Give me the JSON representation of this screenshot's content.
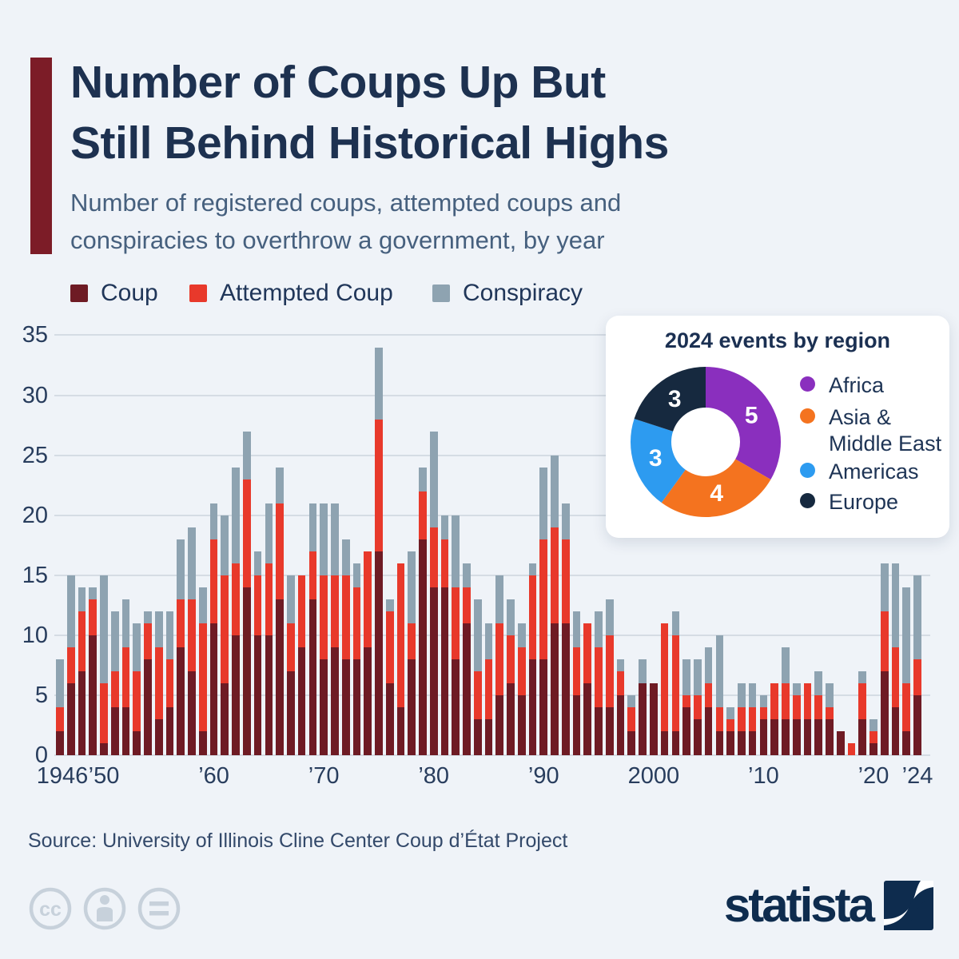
{
  "header": {
    "title_lines": [
      "Number of Coups Up But",
      "Still Behind Historical Highs"
    ],
    "subtitle_lines": [
      "Number of registered coups, attempted coups and",
      "conspiracies to overthrow a government, by year"
    ],
    "accent_color": "#7c1c27"
  },
  "legend": {
    "items": [
      {
        "label": "Coup",
        "color": "#6e1b24"
      },
      {
        "label": "Attempted Coup",
        "color": "#e8392b"
      },
      {
        "label": "Conspiracy",
        "color": "#8ea3b1"
      }
    ]
  },
  "chart_data": {
    "type": "bar",
    "stacked": true,
    "title": "Number of registered coups, attempted coups and conspiracies to overthrow a government, by year",
    "ylim": [
      0,
      35
    ],
    "y_ticks": [
      0,
      5,
      10,
      15,
      20,
      25,
      30,
      35
    ],
    "grid": "horizontal",
    "legend_position": "top-left",
    "years": [
      1946,
      1947,
      1948,
      1949,
      1950,
      1951,
      1952,
      1953,
      1954,
      1955,
      1956,
      1957,
      1958,
      1959,
      1960,
      1961,
      1962,
      1963,
      1964,
      1965,
      1966,
      1967,
      1968,
      1969,
      1970,
      1971,
      1972,
      1973,
      1974,
      1975,
      1976,
      1977,
      1978,
      1979,
      1980,
      1981,
      1982,
      1983,
      1984,
      1985,
      1986,
      1987,
      1988,
      1989,
      1990,
      1991,
      1992,
      1993,
      1994,
      1995,
      1996,
      1997,
      1998,
      1999,
      2000,
      2001,
      2002,
      2003,
      2004,
      2005,
      2006,
      2007,
      2008,
      2009,
      2010,
      2011,
      2012,
      2013,
      2014,
      2015,
      2016,
      2017,
      2018,
      2019,
      2020,
      2021,
      2022,
      2023,
      2024
    ],
    "series": [
      {
        "name": "Coup",
        "color": "#6e1b24",
        "values": [
          2,
          6,
          7,
          10,
          1,
          4,
          4,
          2,
          8,
          3,
          4,
          9,
          7,
          2,
          11,
          6,
          10,
          14,
          10,
          10,
          13,
          7,
          9,
          13,
          8,
          9,
          8,
          8,
          9,
          17,
          6,
          4,
          8,
          18,
          14,
          14,
          8,
          11,
          3,
          3,
          5,
          6,
          5,
          8,
          8,
          11,
          11,
          5,
          6,
          4,
          4,
          5,
          2,
          6,
          6,
          2,
          2,
          4,
          3,
          4,
          2,
          2,
          2,
          2,
          3,
          3,
          3,
          3,
          3,
          3,
          3,
          2,
          0,
          3,
          1,
          7,
          4,
          2,
          5
        ]
      },
      {
        "name": "Attempted Coup",
        "color": "#e8392b",
        "values": [
          2,
          3,
          5,
          3,
          5,
          3,
          5,
          5,
          3,
          6,
          4,
          4,
          6,
          9,
          7,
          9,
          6,
          9,
          5,
          6,
          8,
          4,
          6,
          4,
          7,
          6,
          7,
          6,
          8,
          11,
          6,
          12,
          3,
          4,
          5,
          4,
          6,
          3,
          4,
          5,
          6,
          4,
          4,
          7,
          10,
          8,
          7,
          4,
          5,
          5,
          6,
          2,
          2,
          0,
          0,
          9,
          8,
          1,
          2,
          2,
          2,
          1,
          2,
          2,
          1,
          3,
          3,
          2,
          3,
          2,
          1,
          0,
          1,
          3,
          1,
          5,
          5,
          4,
          3
        ]
      },
      {
        "name": "Conspiracy",
        "color": "#8ea3b1",
        "values": [
          4,
          6,
          2,
          1,
          9,
          5,
          4,
          4,
          1,
          3,
          4,
          5,
          6,
          3,
          3,
          5,
          8,
          4,
          2,
          5,
          3,
          4,
          0,
          4,
          6,
          6,
          3,
          2,
          0,
          6,
          1,
          0,
          6,
          2,
          8,
          2,
          6,
          2,
          6,
          3,
          4,
          3,
          2,
          1,
          6,
          6,
          3,
          3,
          0,
          3,
          3,
          1,
          1,
          2,
          0,
          0,
          2,
          3,
          3,
          3,
          6,
          1,
          2,
          2,
          1,
          0,
          3,
          1,
          0,
          2,
          2,
          0,
          0,
          1,
          1,
          4,
          7,
          8,
          7
        ]
      }
    ],
    "x_tick_labels": [
      {
        "label": "1946",
        "year": 1946
      },
      {
        "label": "’50",
        "year": 1950
      },
      {
        "label": "’60",
        "year": 1960
      },
      {
        "label": "’70",
        "year": 1970
      },
      {
        "label": "’80",
        "year": 1980
      },
      {
        "label": "’90",
        "year": 1990
      },
      {
        "label": "2000",
        "year": 2000
      },
      {
        "label": "’10",
        "year": 2010
      },
      {
        "label": "’20",
        "year": 2020
      },
      {
        "label": "’24",
        "year": 2024
      }
    ]
  },
  "inset": {
    "title": "2024 events by region",
    "type": "donut",
    "segments": [
      {
        "label": "Africa",
        "legend_lines": [
          "Africa"
        ],
        "value": 5,
        "color": "#8a2fbe"
      },
      {
        "label": "Asia & Middle East",
        "legend_lines": [
          "Asia &",
          "Middle East"
        ],
        "value": 4,
        "color": "#f4731f"
      },
      {
        "label": "Americas",
        "legend_lines": [
          "Americas"
        ],
        "value": 3,
        "color": "#2d9bf0"
      },
      {
        "label": "Europe",
        "legend_lines": [
          "Europe"
        ],
        "value": 3,
        "color": "#16293f"
      }
    ]
  },
  "footer": {
    "source": "Source: University of Illinois Cline Center Coup d’État Project",
    "brand": "statista",
    "cc_icons": [
      "cc-icon",
      "attribution-person-icon",
      "no-derivs-equals-icon"
    ]
  }
}
